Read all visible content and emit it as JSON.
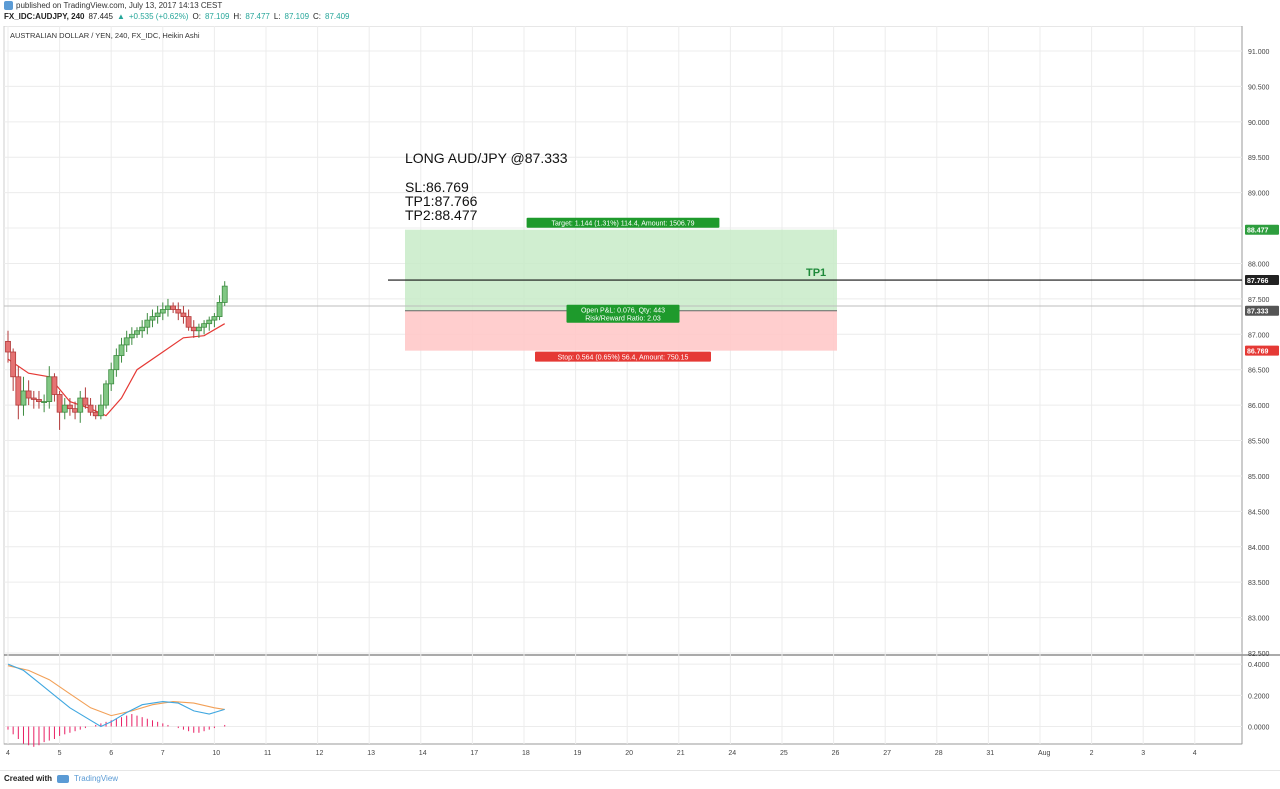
{
  "header": {
    "published_text": "published on TradingView.com, July 13, 2017 14:13 CEST",
    "symbol": "FX_IDC:AUDJPY, 240",
    "last": "87.445",
    "change": "+0.535 (+0.62%)",
    "open_label": "O:",
    "open": "87.109",
    "high_label": "H:",
    "high": "87.477",
    "low_label": "L:",
    "low": "87.109",
    "close_label": "C:",
    "close": "87.409"
  },
  "footer": {
    "created_with": "Created with",
    "brand": "TradingView"
  },
  "colors": {
    "up": "#26a69a",
    "down": "#ef5350",
    "bull_candle": "#81c784",
    "bear_candle": "#e57373",
    "band": "#e53935",
    "macd_line": "#3fa7e0",
    "signal_line": "#f2a057",
    "histogram": "#e91e63",
    "target_zone": "#c8ebc8",
    "stop_zone": "#ffc9c9",
    "target_label": "#1e9a2c",
    "stop_label": "#e53935"
  },
  "chart_data": {
    "type": "candlestick",
    "title": "AUSTRALIAN DOLLAR / YEN, 240, FX_IDC, Heikin Ashi",
    "ylim": [
      82.5,
      91.25
    ],
    "y_ticks": [
      "91.000",
      "90.500",
      "90.000",
      "89.500",
      "89.000",
      "88.500",
      "88.000",
      "87.500",
      "87.000",
      "86.500",
      "86.000",
      "85.500",
      "85.000",
      "84.500",
      "84.000",
      "83.500",
      "83.000",
      "82.500"
    ],
    "x_ticks": [
      "4",
      "5",
      "6",
      "7",
      "10",
      "11",
      "12",
      "13",
      "14",
      "17",
      "18",
      "19",
      "20",
      "21",
      "24",
      "25",
      "26",
      "27",
      "28",
      "31",
      "Aug",
      "2",
      "3",
      "4"
    ],
    "price_tags": [
      {
        "label": "88.477",
        "value": 88.477,
        "color": "#2e9e3e"
      },
      {
        "label": "87.766",
        "value": 87.766,
        "color": "#222222"
      },
      {
        "label": "87.333",
        "value": 87.333,
        "color": "#555555"
      },
      {
        "label": "86.769",
        "value": 86.769,
        "color": "#e53935"
      }
    ],
    "candles": [
      {
        "x": 0.0,
        "o": 86.9,
        "h": 87.05,
        "l": 86.6,
        "c": 86.75
      },
      {
        "x": 0.1,
        "o": 86.75,
        "h": 86.8,
        "l": 86.2,
        "c": 86.4
      },
      {
        "x": 0.2,
        "o": 86.4,
        "h": 86.55,
        "l": 85.8,
        "c": 86.0
      },
      {
        "x": 0.3,
        "o": 86.0,
        "h": 86.4,
        "l": 85.85,
        "c": 86.2
      },
      {
        "x": 0.4,
        "o": 86.2,
        "h": 86.35,
        "l": 86.0,
        "c": 86.1
      },
      {
        "x": 0.5,
        "o": 86.1,
        "h": 86.2,
        "l": 85.95,
        "c": 86.08
      },
      {
        "x": 0.6,
        "o": 86.08,
        "h": 86.2,
        "l": 85.95,
        "c": 86.05
      },
      {
        "x": 0.7,
        "o": 86.05,
        "h": 86.15,
        "l": 85.9,
        "c": 86.05
      },
      {
        "x": 0.8,
        "o": 86.05,
        "h": 86.55,
        "l": 85.95,
        "c": 86.4
      },
      {
        "x": 0.9,
        "o": 86.4,
        "h": 86.45,
        "l": 86.05,
        "c": 86.15
      },
      {
        "x": 1.0,
        "o": 86.15,
        "h": 86.2,
        "l": 85.65,
        "c": 85.9
      },
      {
        "x": 1.1,
        "o": 85.9,
        "h": 86.1,
        "l": 85.8,
        "c": 86.0
      },
      {
        "x": 1.2,
        "o": 86.0,
        "h": 86.1,
        "l": 85.85,
        "c": 85.95
      },
      {
        "x": 1.3,
        "o": 85.95,
        "h": 86.05,
        "l": 85.8,
        "c": 85.9
      },
      {
        "x": 1.4,
        "o": 85.9,
        "h": 86.2,
        "l": 85.75,
        "c": 86.1
      },
      {
        "x": 1.5,
        "o": 86.1,
        "h": 86.25,
        "l": 85.95,
        "c": 86.0
      },
      {
        "x": 1.6,
        "o": 86.0,
        "h": 86.1,
        "l": 85.85,
        "c": 85.9
      },
      {
        "x": 1.7,
        "o": 85.9,
        "h": 86.0,
        "l": 85.8,
        "c": 85.85
      },
      {
        "x": 1.8,
        "o": 85.85,
        "h": 86.15,
        "l": 85.8,
        "c": 86.0
      },
      {
        "x": 1.9,
        "o": 86.0,
        "h": 86.35,
        "l": 85.95,
        "c": 86.3
      },
      {
        "x": 2.0,
        "o": 86.3,
        "h": 86.6,
        "l": 86.2,
        "c": 86.5
      },
      {
        "x": 2.1,
        "o": 86.5,
        "h": 86.8,
        "l": 86.4,
        "c": 86.7
      },
      {
        "x": 2.2,
        "o": 86.7,
        "h": 86.95,
        "l": 86.6,
        "c": 86.85
      },
      {
        "x": 2.3,
        "o": 86.85,
        "h": 87.05,
        "l": 86.75,
        "c": 86.95
      },
      {
        "x": 2.4,
        "o": 86.95,
        "h": 87.1,
        "l": 86.85,
        "c": 87.0
      },
      {
        "x": 2.5,
        "o": 87.0,
        "h": 87.1,
        "l": 86.95,
        "c": 87.05
      },
      {
        "x": 2.6,
        "o": 87.05,
        "h": 87.2,
        "l": 86.95,
        "c": 87.1
      },
      {
        "x": 2.7,
        "o": 87.1,
        "h": 87.3,
        "l": 87.0,
        "c": 87.2
      },
      {
        "x": 2.8,
        "o": 87.2,
        "h": 87.35,
        "l": 87.1,
        "c": 87.25
      },
      {
        "x": 2.9,
        "o": 87.25,
        "h": 87.4,
        "l": 87.15,
        "c": 87.3
      },
      {
        "x": 3.0,
        "o": 87.3,
        "h": 87.45,
        "l": 87.2,
        "c": 87.35
      },
      {
        "x": 3.1,
        "o": 87.35,
        "h": 87.5,
        "l": 87.25,
        "c": 87.4
      },
      {
        "x": 3.2,
        "o": 87.4,
        "h": 87.45,
        "l": 87.3,
        "c": 87.35
      },
      {
        "x": 3.3,
        "o": 87.35,
        "h": 87.45,
        "l": 87.2,
        "c": 87.3
      },
      {
        "x": 3.4,
        "o": 87.3,
        "h": 87.4,
        "l": 87.15,
        "c": 87.25
      },
      {
        "x": 3.5,
        "o": 87.25,
        "h": 87.35,
        "l": 87.05,
        "c": 87.1
      },
      {
        "x": 3.6,
        "o": 87.1,
        "h": 87.2,
        "l": 86.95,
        "c": 87.05
      },
      {
        "x": 3.7,
        "o": 87.05,
        "h": 87.15,
        "l": 86.95,
        "c": 87.1
      },
      {
        "x": 3.8,
        "o": 87.1,
        "h": 87.2,
        "l": 87.0,
        "c": 87.15
      },
      {
        "x": 3.9,
        "o": 87.15,
        "h": 87.25,
        "l": 87.05,
        "c": 87.2
      },
      {
        "x": 4.0,
        "o": 87.2,
        "h": 87.3,
        "l": 87.1,
        "c": 87.25
      },
      {
        "x": 4.1,
        "o": 87.25,
        "h": 87.55,
        "l": 87.2,
        "c": 87.45
      },
      {
        "x": 4.2,
        "o": 87.45,
        "h": 87.75,
        "l": 87.4,
        "c": 87.68
      }
    ],
    "band_line": [
      [
        0.0,
        86.65
      ],
      [
        0.4,
        86.45
      ],
      [
        0.8,
        86.4
      ],
      [
        1.2,
        86.05
      ],
      [
        1.6,
        85.95
      ],
      [
        1.9,
        85.85
      ],
      [
        2.2,
        86.1
      ],
      [
        2.5,
        86.5
      ],
      [
        3.0,
        86.75
      ],
      [
        3.4,
        86.95
      ],
      [
        3.8,
        86.98
      ],
      [
        4.2,
        87.15
      ]
    ],
    "position": {
      "label": "LONG AUD/JPY @87.333",
      "sl": "SL:86.769",
      "tp1": "TP1:87.766",
      "tp2": "TP2:88.477",
      "entry": 87.333,
      "stop": 86.769,
      "target": 88.477,
      "target_text": "Target: 1.144 (1.31%) 114.4, Amount: 1506.79",
      "pnl_text_1": "Open P&L: 0.076, Qty: 443",
      "pnl_text_2": "Risk/Reward Ratio: 2.03",
      "stop_text": "Stop: 0.564 (0.65%) 56.4, Amount: 750.15"
    },
    "tp1_line": {
      "value": 87.766,
      "label": "TP1"
    },
    "macd": {
      "ylim": [
        -0.08,
        0.42
      ],
      "y_ticks": [
        "0.4000",
        "0.2000",
        "0.0000"
      ],
      "macd": [
        [
          0.0,
          0.4
        ],
        [
          0.3,
          0.36
        ],
        [
          0.6,
          0.28
        ],
        [
          0.9,
          0.2
        ],
        [
          1.2,
          0.12
        ],
        [
          1.5,
          0.06
        ],
        [
          1.8,
          0.0
        ],
        [
          2.0,
          0.03
        ],
        [
          2.3,
          0.09
        ],
        [
          2.6,
          0.14
        ],
        [
          3.0,
          0.16
        ],
        [
          3.3,
          0.15
        ],
        [
          3.6,
          0.1
        ],
        [
          3.9,
          0.08
        ],
        [
          4.2,
          0.11
        ]
      ],
      "signal": [
        [
          0.0,
          0.39
        ],
        [
          0.4,
          0.36
        ],
        [
          0.8,
          0.3
        ],
        [
          1.2,
          0.21
        ],
        [
          1.6,
          0.12
        ],
        [
          2.0,
          0.07
        ],
        [
          2.4,
          0.1
        ],
        [
          2.8,
          0.14
        ],
        [
          3.2,
          0.16
        ],
        [
          3.6,
          0.15
        ],
        [
          4.0,
          0.12
        ],
        [
          4.2,
          0.11
        ]
      ],
      "hist": [
        -0.02,
        -0.05,
        -0.08,
        -0.11,
        -0.12,
        -0.13,
        -0.12,
        -0.1,
        -0.09,
        -0.08,
        -0.06,
        -0.05,
        -0.04,
        -0.03,
        -0.02,
        -0.01,
        0.0,
        0.01,
        0.02,
        0.03,
        0.04,
        0.05,
        0.06,
        0.07,
        0.08,
        0.07,
        0.06,
        0.05,
        0.04,
        0.03,
        0.02,
        0.01,
        0.0,
        -0.01,
        -0.02,
        -0.03,
        -0.04,
        -0.04,
        -0.03,
        -0.02,
        -0.01,
        0.0,
        0.01
      ]
    }
  }
}
